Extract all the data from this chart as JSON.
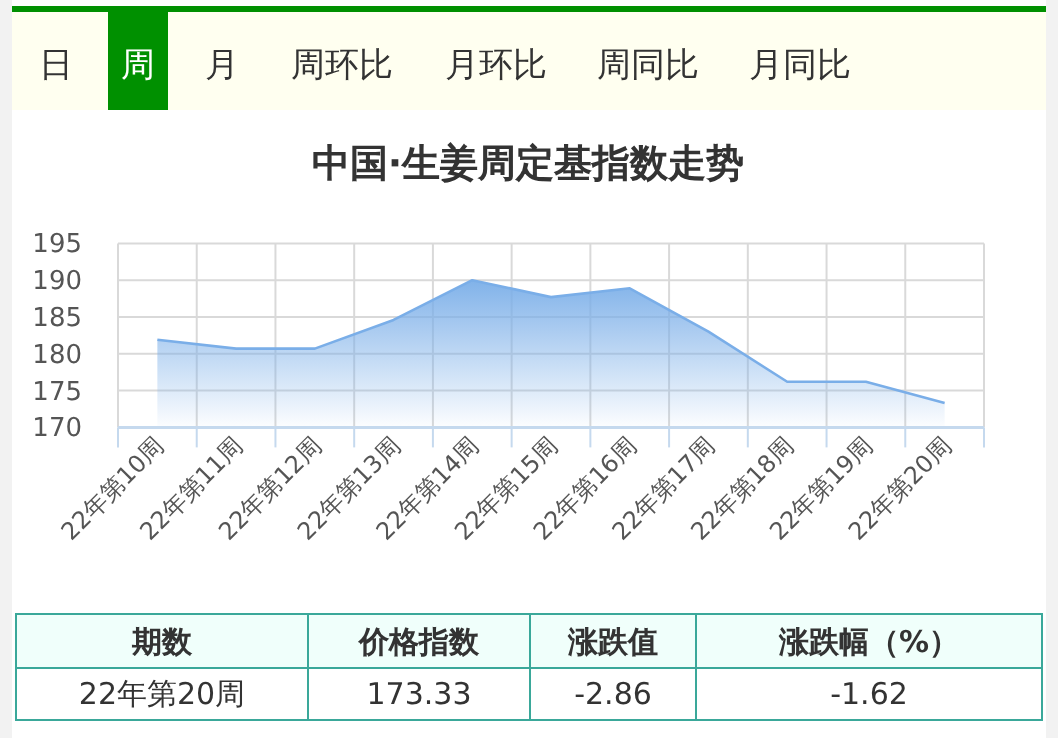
{
  "chart_data": {
    "type": "area",
    "title": "中国·生姜周定基指数走势",
    "categories": [
      "22年第10周",
      "22年第11周",
      "22年第12周",
      "22年第13周",
      "22年第14周",
      "22年第15周",
      "22年第16周",
      "22年第17周",
      "22年第18周",
      "22年第19周",
      "22年第20周"
    ],
    "values": [
      181.9,
      180.7,
      180.7,
      184.6,
      190.0,
      187.7,
      188.9,
      183.0,
      176.2,
      176.2,
      173.33
    ],
    "color": "#7aaee8",
    "ylim": [
      170,
      195
    ],
    "yticks": [
      170,
      175,
      180,
      185,
      190,
      195
    ],
    "grid": true,
    "annotations": [
      "日",
      "周",
      "月",
      "周环比",
      "月环比",
      "周同比",
      "月同比",
      "期数",
      "价格指数",
      "涨跌值",
      "涨跌幅（%）",
      "22年第20周",
      "173.33",
      "-2.86",
      "-1.62"
    ]
  }
}
